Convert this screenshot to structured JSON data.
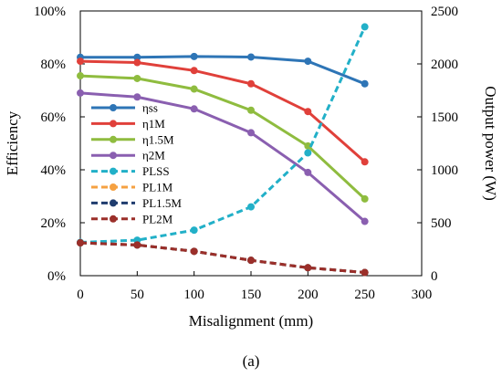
{
  "chart_data": {
    "type": "line",
    "caption": "(a)",
    "xlabel": "Misalignment  (mm)",
    "ylabel_left": "Efficiency",
    "ylabel_right": "Output power (W)",
    "x": [
      0,
      50,
      100,
      150,
      200,
      250
    ],
    "xlim": [
      0,
      300
    ],
    "xticks": [
      "0",
      "50",
      "100",
      "150",
      "200",
      "250",
      "300"
    ],
    "ylim_left": [
      0,
      100
    ],
    "yticks_left": [
      "0%",
      "20%",
      "40%",
      "60%",
      "80%",
      "100%"
    ],
    "ylim_right": [
      0,
      2500
    ],
    "yticks_right": [
      "0",
      "500",
      "1000",
      "1500",
      "2000",
      "2500"
    ],
    "grid": false,
    "legend_position": "left-middle",
    "series": [
      {
        "name": "ηss",
        "axis": "left",
        "color": "#2e75b6",
        "dash": "solid",
        "values": [
          82.5,
          82.5,
          82.8,
          82.6,
          81.0,
          72.5
        ]
      },
      {
        "name": "η1M",
        "axis": "left",
        "color": "#e0403a",
        "dash": "solid",
        "values": [
          81.0,
          80.5,
          77.5,
          72.5,
          62.0,
          43.0
        ]
      },
      {
        "name": "η1.5M",
        "axis": "left",
        "color": "#8fbc3f",
        "dash": "solid",
        "values": [
          75.5,
          74.5,
          70.5,
          62.5,
          49.0,
          29.0
        ]
      },
      {
        "name": "η2M",
        "axis": "left",
        "color": "#8a5fb0",
        "dash": "solid",
        "values": [
          69.0,
          67.5,
          63.0,
          54.0,
          39.0,
          20.5
        ]
      },
      {
        "name": "PLSS",
        "axis": "right",
        "color": "#22b0c8",
        "dash": "dashed",
        "values": [
          315,
          335,
          430,
          650,
          1160,
          2350
        ]
      },
      {
        "name": "PL1M",
        "axis": "right",
        "color": "#f5a142",
        "dash": "dashed",
        "values": [
          310,
          290,
          230,
          145,
          75,
          30
        ]
      },
      {
        "name": "PL1.5M",
        "axis": "right",
        "color": "#1f3c6e",
        "dash": "dashed",
        "values": [
          310,
          290,
          230,
          145,
          75,
          30
        ]
      },
      {
        "name": "PL2M",
        "axis": "right",
        "color": "#9b2f2a",
        "dash": "dashed",
        "values": [
          310,
          290,
          230,
          145,
          75,
          30
        ]
      }
    ]
  }
}
